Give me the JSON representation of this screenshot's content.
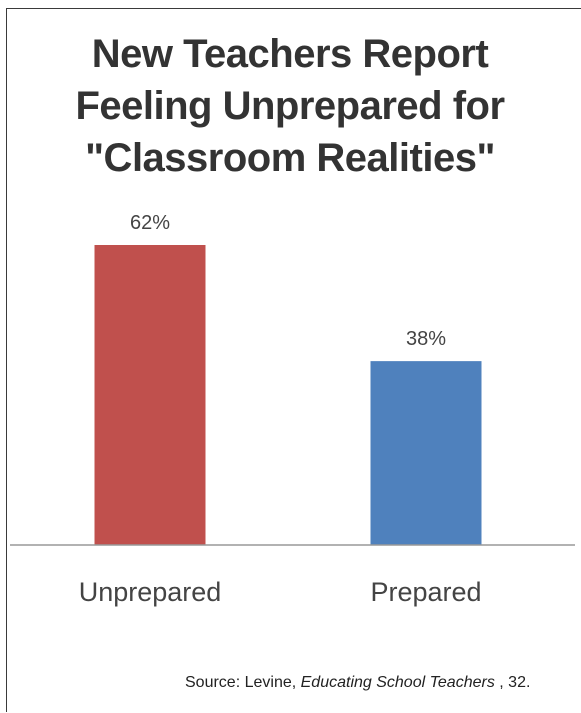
{
  "title_lines": [
    "New Teachers Report",
    "Feeling Unprepared for",
    "\"Classroom Realities\""
  ],
  "source": {
    "prefix": "Source: Levine, ",
    "work": "Educating School Teachers",
    "suffix": " , 32."
  },
  "chart_data": {
    "type": "bar",
    "title": "New Teachers Report Feeling Unprepared for \"Classroom Realities\"",
    "categories": [
      "Unprepared",
      "Prepared"
    ],
    "values": [
      62,
      38
    ],
    "data_labels": [
      "62%",
      "38%"
    ],
    "colors": [
      "#c0504d",
      "#4f81bd"
    ],
    "ylim": [
      0,
      70
    ],
    "grid": false,
    "legend": "none"
  },
  "colors": {
    "unprepared_bar": "#c0504d",
    "prepared_bar": "#4f81bd",
    "axis": "#999999",
    "title_text": "#333333"
  }
}
